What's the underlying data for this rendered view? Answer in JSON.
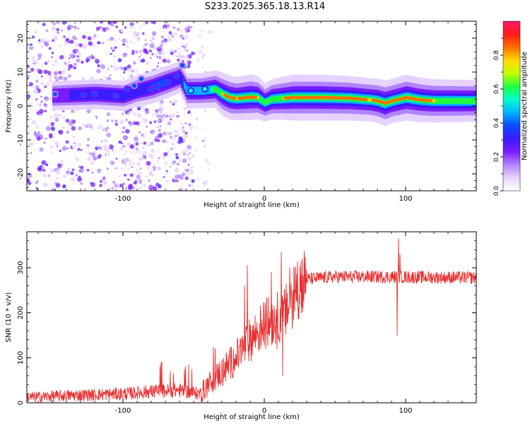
{
  "page_title": "S233.2025.365.18.13.R14",
  "chart_data": [
    {
      "type": "heatmap",
      "name": "spectrogram",
      "xlabel": "Height of straight line (km)",
      "ylabel": "Frequency (Hz)",
      "xlim": [
        -168,
        150
      ],
      "ylim": [
        -25,
        25
      ],
      "xticks": [
        -100,
        0,
        100
      ],
      "yticks": [
        -20,
        -10,
        0,
        10,
        20
      ],
      "colorbar": {
        "label": "Normalized spectral amplitude",
        "range": [
          0,
          1
        ],
        "ticks": [
          0.0,
          0.2,
          0.4,
          0.6,
          0.8
        ],
        "colors": [
          "#ffffff",
          "#e6d2ff",
          "#b084ff",
          "#7a1cff",
          "#3a1cff",
          "#0a4cff",
          "#00b4ff",
          "#00ffd0",
          "#20ff40",
          "#c8ff00",
          "#ffd800",
          "#ff7000",
          "#ff1a1a",
          "#ff1a6a"
        ]
      },
      "ridge": {
        "x": [
          -150,
          -120,
          -100,
          -90,
          -80,
          -70,
          -60,
          -55,
          -45,
          -35,
          -30,
          -25,
          -20,
          -10,
          -5,
          0,
          5,
          20,
          40,
          60,
          75,
          80,
          85,
          90,
          100,
          110,
          120,
          150
        ],
        "freq": [
          3,
          3.5,
          3,
          4.5,
          5.5,
          7,
          8.5,
          4.5,
          4.5,
          5,
          3.5,
          2.5,
          2.2,
          2.6,
          2.5,
          1,
          2,
          2.5,
          2.5,
          2.3,
          1.8,
          1.5,
          0.8,
          1.5,
          2.5,
          1.8,
          1.5,
          1.5
        ],
        "amplitude": [
          0.25,
          0.3,
          0.3,
          0.35,
          0.4,
          0.4,
          0.35,
          0.5,
          0.5,
          0.6,
          0.8,
          0.85,
          0.8,
          0.9,
          0.8,
          0.6,
          0.7,
          0.9,
          0.9,
          0.85,
          0.8,
          0.85,
          0.9,
          0.85,
          0.9,
          0.85,
          0.8,
          0.75
        ]
      },
      "blobs": [
        {
          "x": -148,
          "f": 3.5,
          "a": 0.25
        },
        {
          "x": -128,
          "f": 3.2,
          "a": 0.3
        },
        {
          "x": -120,
          "f": 3.6,
          "a": 0.3
        },
        {
          "x": -105,
          "f": 3.0,
          "a": 0.3
        },
        {
          "x": -97,
          "f": 5.0,
          "a": 0.3
        },
        {
          "x": -92,
          "f": 6.0,
          "a": 0.25
        },
        {
          "x": -87,
          "f": 8.0,
          "a": 0.25
        },
        {
          "x": -80,
          "f": 5.0,
          "a": 0.3
        },
        {
          "x": -75,
          "f": 5.5,
          "a": 0.3
        },
        {
          "x": -68,
          "f": 7.0,
          "a": 0.3
        },
        {
          "x": -62,
          "f": 9.0,
          "a": 0.3
        },
        {
          "x": -58,
          "f": 12.0,
          "a": 0.25
        },
        {
          "x": -52,
          "f": 4.5,
          "a": 0.4
        },
        {
          "x": -42,
          "f": 5.0,
          "a": 0.4
        }
      ]
    },
    {
      "type": "line",
      "name": "snr",
      "xlabel": "Height of straight line (km)",
      "ylabel": "SNR (10 * v/v)",
      "xlim": [
        -168,
        150
      ],
      "ylim": [
        0,
        380
      ],
      "xticks": [
        -100,
        0,
        100
      ],
      "yticks": [
        0,
        100,
        200,
        300
      ],
      "color": "#e83030",
      "trend": {
        "x": [
          -168,
          -140,
          -120,
          -100,
          -80,
          -60,
          -45,
          -40,
          -30,
          -20,
          -10,
          0,
          10,
          15,
          20,
          25,
          30,
          50,
          80,
          150
        ],
        "y": [
          12,
          16,
          18,
          20,
          25,
          28,
          20,
          40,
          70,
          100,
          140,
          175,
          190,
          200,
          235,
          265,
          275,
          280,
          280,
          278
        ]
      },
      "spikes": [
        {
          "x": 94,
          "y": 150
        },
        {
          "x": 95,
          "y": 365
        },
        {
          "x": 96,
          "y": 330
        },
        {
          "x": 12,
          "y": 335
        },
        {
          "x": 13,
          "y": 60
        },
        {
          "x": 15,
          "y": 230
        },
        {
          "x": -12,
          "y": 305
        },
        {
          "x": -14,
          "y": 260
        },
        {
          "x": 5,
          "y": 290
        },
        {
          "x": 18,
          "y": 300
        },
        {
          "x": 9,
          "y": 120
        }
      ]
    }
  ]
}
